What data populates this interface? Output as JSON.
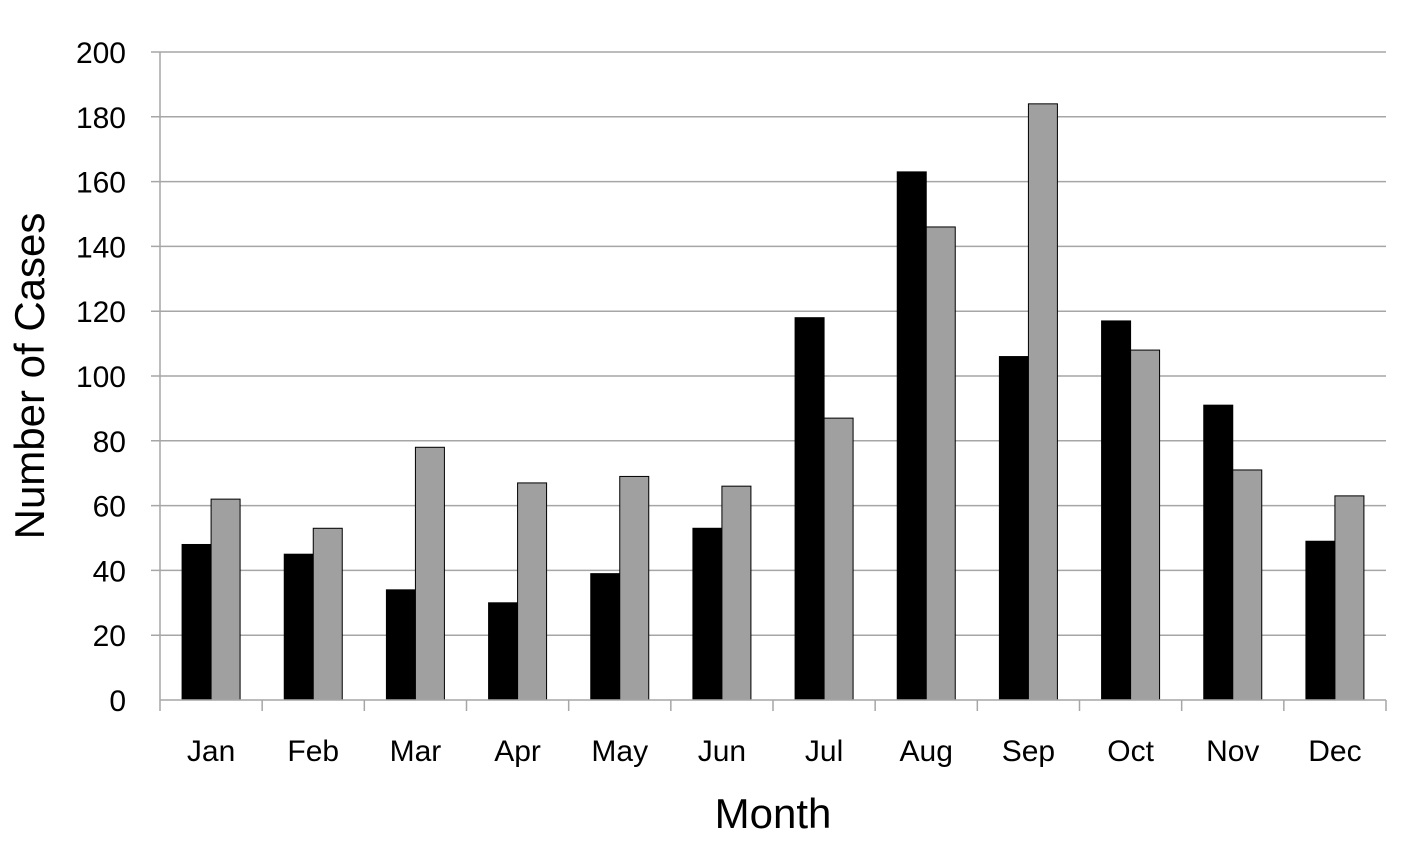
{
  "chart_data": {
    "type": "bar",
    "categories": [
      "Jan",
      "Feb",
      "Mar",
      "Apr",
      "May",
      "Jun",
      "Jul",
      "Aug",
      "Sep",
      "Oct",
      "Nov",
      "Dec"
    ],
    "series": [
      {
        "values": [
          48,
          45,
          34,
          30,
          39,
          53,
          118,
          163,
          106,
          117,
          91,
          49
        ],
        "color": "#000000"
      },
      {
        "values": [
          62,
          53,
          78,
          67,
          69,
          66,
          87,
          146,
          184,
          108,
          71,
          63
        ],
        "color": "#a0a0a0"
      }
    ],
    "title": "",
    "xlabel": "Month",
    "ylabel": "Number of Cases",
    "ylim": [
      0,
      200
    ],
    "yticks": [
      "0",
      "20",
      "40",
      "60",
      "80",
      "100",
      "120",
      "140",
      "160",
      "180",
      "200"
    ],
    "grid": true,
    "legend": "none",
    "colors": {
      "gridline": "#a6a6a6",
      "bar_outline": "#000000"
    }
  }
}
